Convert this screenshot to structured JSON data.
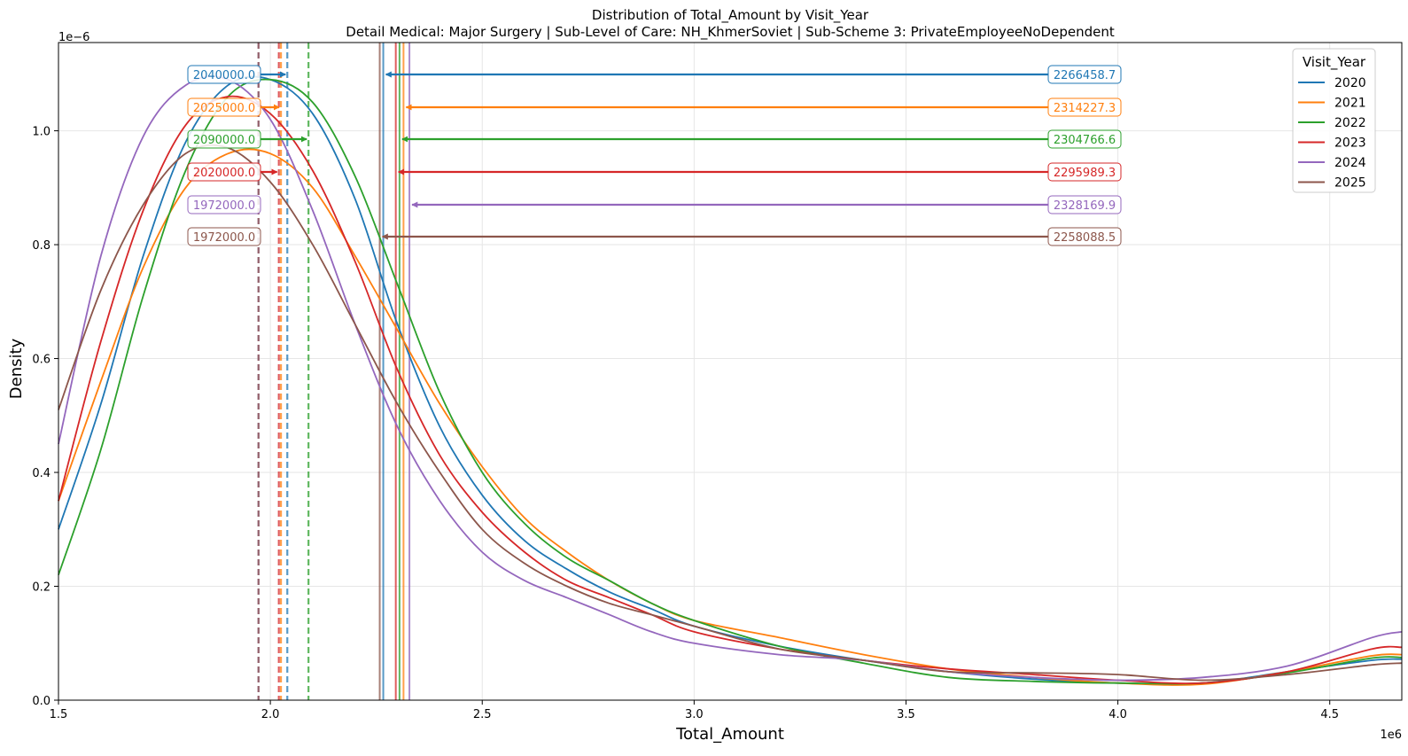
{
  "chart_data": {
    "type": "line",
    "title": "Distribution of Total_Amount by Visit_Year",
    "subtitle": "Detail Medical: Major Surgery | Sub-Level of Care: NH_KhmerSoviet | Sub-Scheme 3: PrivateEmployeeNoDependent",
    "xlabel": "Total_Amount",
    "ylabel": "Density",
    "x_offset_label": "1e6",
    "y_offset_label": "1e−6",
    "xlim": [
      1.5,
      4.67
    ],
    "ylim": [
      0,
      1.155
    ],
    "x_ticks": [
      "1.5",
      "2.0",
      "2.5",
      "3.0",
      "3.5",
      "4.0",
      "4.5"
    ],
    "y_ticks": [
      "0.0",
      "0.2",
      "0.4",
      "0.6",
      "0.8",
      "1.0"
    ],
    "grid": true,
    "legend": {
      "title": "Visit_Year",
      "placement": "top-right"
    },
    "x": [
      1.5,
      1.6,
      1.7,
      1.8,
      1.9,
      2.0,
      2.1,
      2.2,
      2.3,
      2.4,
      2.5,
      2.6,
      2.7,
      2.8,
      2.9,
      3.0,
      3.2,
      3.4,
      3.6,
      3.8,
      4.0,
      4.2,
      4.4,
      4.6,
      4.67
    ],
    "series": [
      {
        "name": "2020",
        "color": "#1f77b4",
        "median": 2040000.0,
        "median_label": "2040000.0",
        "mean": 2266458.7,
        "mean_label": "2266458.7",
        "values": [
          0.3,
          0.52,
          0.78,
          0.98,
          1.08,
          1.09,
          1.03,
          0.88,
          0.66,
          0.48,
          0.36,
          0.28,
          0.23,
          0.19,
          0.16,
          0.13,
          0.095,
          0.07,
          0.05,
          0.037,
          0.03,
          0.03,
          0.05,
          0.07,
          0.072
        ]
      },
      {
        "name": "2021",
        "color": "#ff7f0e",
        "median": 2025000.0,
        "median_label": "2025000.0",
        "mean": 2314227.3,
        "mean_label": "2314227.3",
        "values": [
          0.35,
          0.56,
          0.76,
          0.9,
          0.96,
          0.96,
          0.9,
          0.78,
          0.65,
          0.52,
          0.41,
          0.32,
          0.26,
          0.21,
          0.17,
          0.14,
          0.11,
          0.08,
          0.055,
          0.04,
          0.03,
          0.028,
          0.05,
          0.078,
          0.08
        ]
      },
      {
        "name": "2022",
        "color": "#2ca02c",
        "median": 2090000.0,
        "median_label": "2090000.0",
        "mean": 2304766.6,
        "mean_label": "2304766.6",
        "values": [
          0.22,
          0.44,
          0.71,
          0.93,
          1.06,
          1.09,
          1.05,
          0.92,
          0.73,
          0.54,
          0.4,
          0.31,
          0.25,
          0.21,
          0.17,
          0.14,
          0.095,
          0.065,
          0.04,
          0.033,
          0.03,
          0.03,
          0.048,
          0.074,
          0.075
        ]
      },
      {
        "name": "2023",
        "color": "#d62728",
        "median": 2020000.0,
        "median_label": "2020000.0",
        "mean": 2295989.3,
        "mean_label": "2295989.3",
        "values": [
          0.35,
          0.63,
          0.86,
          1.01,
          1.06,
          1.03,
          0.93,
          0.77,
          0.58,
          0.43,
          0.33,
          0.26,
          0.21,
          0.18,
          0.15,
          0.12,
          0.09,
          0.07,
          0.055,
          0.045,
          0.035,
          0.03,
          0.05,
          0.09,
          0.093
        ]
      },
      {
        "name": "2024",
        "color": "#9467bd",
        "median": 1972000.0,
        "median_label": "1972000.0",
        "mean": 2328169.9,
        "mean_label": "2328169.9",
        "values": [
          0.45,
          0.78,
          0.99,
          1.08,
          1.09,
          1.02,
          0.86,
          0.66,
          0.48,
          0.35,
          0.26,
          0.21,
          0.18,
          0.15,
          0.12,
          0.1,
          0.08,
          0.07,
          0.05,
          0.04,
          0.035,
          0.04,
          0.06,
          0.11,
          0.12
        ]
      },
      {
        "name": "2025",
        "color": "#8c564b",
        "median": 1972000.0,
        "median_label": "1972000.0",
        "mean": 2258088.5,
        "mean_label": "2258088.5",
        "values": [
          0.51,
          0.72,
          0.87,
          0.96,
          0.97,
          0.91,
          0.8,
          0.66,
          0.52,
          0.4,
          0.3,
          0.24,
          0.2,
          0.17,
          0.15,
          0.13,
          0.09,
          0.07,
          0.05,
          0.048,
          0.045,
          0.035,
          0.045,
          0.062,
          0.065
        ]
      }
    ]
  }
}
